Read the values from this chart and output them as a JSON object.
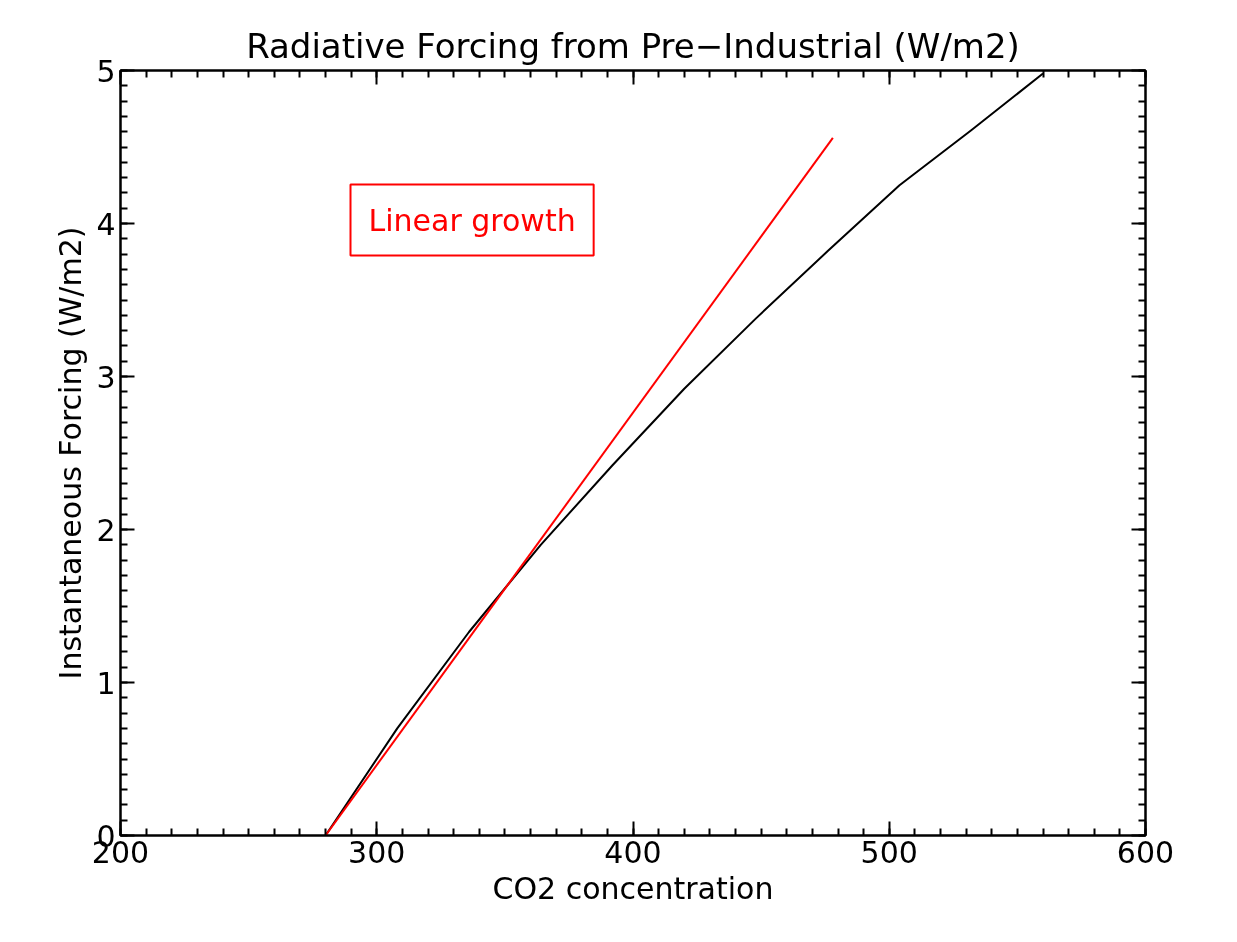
{
  "chart_data": {
    "type": "line",
    "title": "Radiative Forcing from Pre−Industrial (W/m2)",
    "xlabel": "CO2 concentration",
    "ylabel": "Instantaneous Forcing (W/m2)",
    "xlim": [
      200,
      600
    ],
    "ylim": [
      0,
      5
    ],
    "xticks": [
      200,
      300,
      400,
      500,
      600
    ],
    "yticks": [
      0,
      1,
      2,
      3,
      4,
      5
    ],
    "grid": false,
    "marker": "none",
    "line_style": "solid",
    "annotations": [
      "Linear growth"
    ],
    "series": [
      {
        "color": "#000000",
        "x": [
          280,
          308,
          336,
          364,
          392,
          420,
          448,
          476,
          504,
          532,
          560
        ],
        "values": [
          0,
          0.7,
          1.33,
          1.9,
          2.42,
          2.92,
          3.38,
          3.82,
          4.25,
          4.61,
          4.98
        ]
      },
      {
        "color": "#ff0000",
        "x": [
          280,
          478
        ],
        "values": [
          0,
          4.56
        ]
      }
    ]
  }
}
